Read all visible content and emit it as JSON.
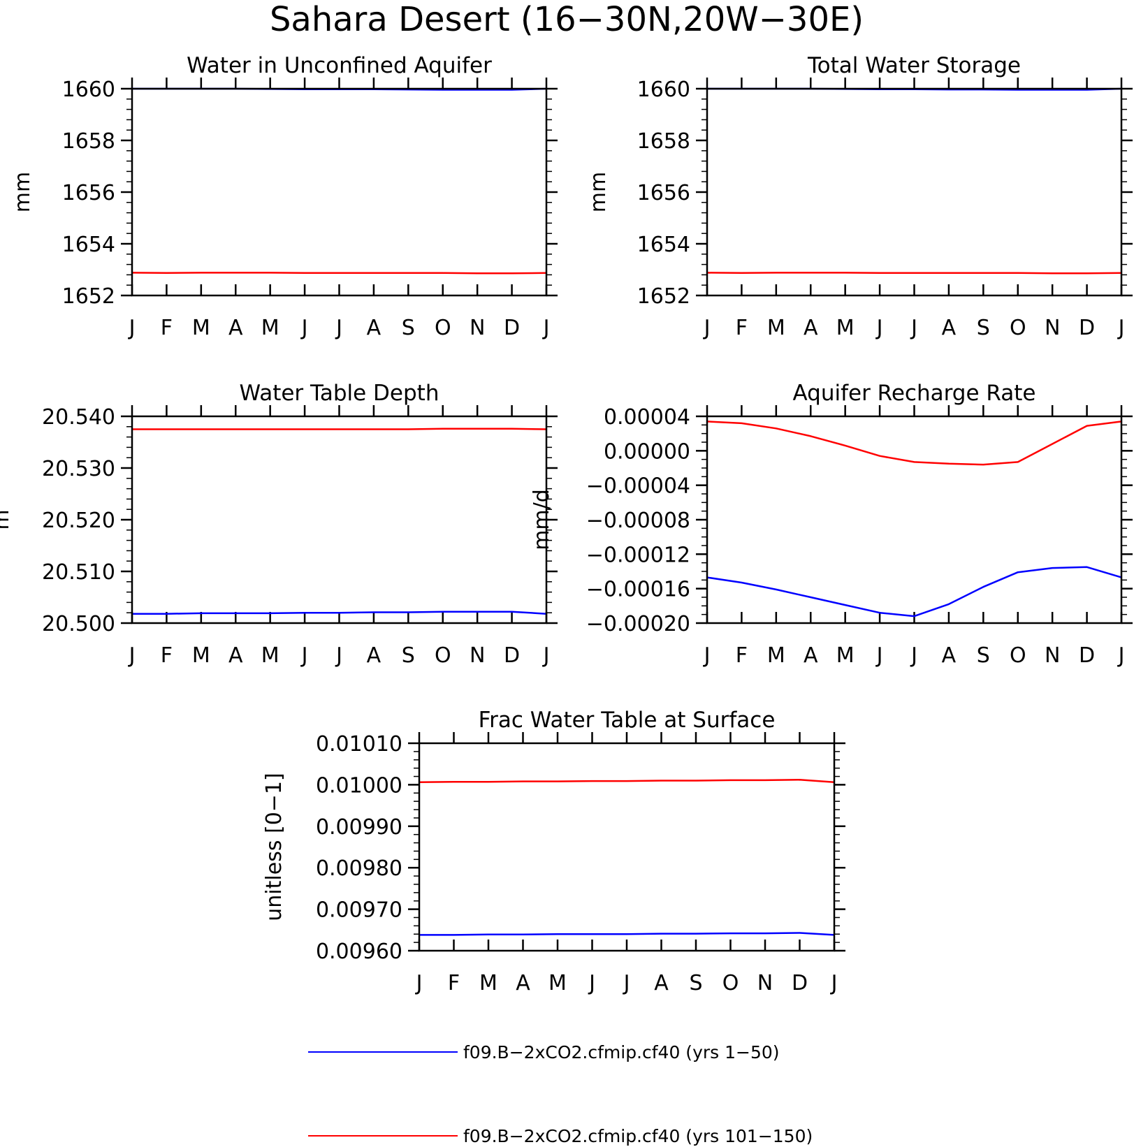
{
  "figure": {
    "title": "Sahara Desert (16−30N,20W−30E)"
  },
  "months": [
    "J",
    "F",
    "M",
    "A",
    "M",
    "J",
    "J",
    "A",
    "S",
    "O",
    "N",
    "D",
    "J"
  ],
  "colors": {
    "series_1": "#0000ff",
    "series_2": "#ff0000",
    "axis": "#000000"
  },
  "legend": {
    "placement": "bottom-center",
    "items": [
      {
        "label": "f09.B−2xCO2.cfmip.cf40 (yrs 1−50)",
        "color": "#0000ff"
      },
      {
        "label": "f09.B−2xCO2.cfmip.cf40 (yrs 101−150)",
        "color": "#ff0000"
      }
    ]
  },
  "chart_data": [
    {
      "type": "line",
      "title": "Water in Unconfined Aquifer",
      "ylabel": "mm",
      "ylim": [
        1652,
        1660
      ],
      "yticks": [
        1652,
        1654,
        1656,
        1658,
        1660
      ],
      "ytick_labels": [
        "1652",
        "1654",
        "1656",
        "1658",
        "1660"
      ],
      "yminor": 0.4,
      "series": [
        {
          "name": "f09.B−2xCO2.cfmip.cf40 (yrs 1−50)",
          "color": "#0000ff",
          "values": [
            1660.0,
            1660.0,
            1660.0,
            1660.0,
            1659.99,
            1659.98,
            1659.98,
            1659.98,
            1659.97,
            1659.96,
            1659.96,
            1659.96,
            1660.0
          ]
        },
        {
          "name": "f09.B−2xCO2.cfmip.cf40 (yrs 101−150)",
          "color": "#ff0000",
          "values": [
            1652.88,
            1652.87,
            1652.88,
            1652.88,
            1652.88,
            1652.87,
            1652.87,
            1652.87,
            1652.87,
            1652.87,
            1652.86,
            1652.86,
            1652.87
          ]
        }
      ]
    },
    {
      "type": "line",
      "title": "Total Water Storage",
      "ylabel": "mm",
      "ylim": [
        1652,
        1660
      ],
      "yticks": [
        1652,
        1654,
        1656,
        1658,
        1660
      ],
      "ytick_labels": [
        "1652",
        "1654",
        "1656",
        "1658",
        "1660"
      ],
      "yminor": 0.4,
      "series": [
        {
          "name": "f09.B−2xCO2.cfmip.cf40 (yrs 1−50)",
          "color": "#0000ff",
          "values": [
            1660.0,
            1660.0,
            1660.0,
            1660.0,
            1659.99,
            1659.98,
            1659.98,
            1659.97,
            1659.97,
            1659.96,
            1659.96,
            1659.96,
            1660.0
          ]
        },
        {
          "name": "f09.B−2xCO2.cfmip.cf40 (yrs 101−150)",
          "color": "#ff0000",
          "values": [
            1652.88,
            1652.87,
            1652.88,
            1652.88,
            1652.88,
            1652.87,
            1652.87,
            1652.87,
            1652.87,
            1652.87,
            1652.86,
            1652.86,
            1652.87
          ]
        }
      ]
    },
    {
      "type": "line",
      "title": "Water Table Depth",
      "ylabel": "m",
      "ylim": [
        20.5,
        20.54
      ],
      "yticks": [
        20.5,
        20.51,
        20.52,
        20.53,
        20.54
      ],
      "ytick_labels": [
        "20.500",
        "20.510",
        "20.520",
        "20.530",
        "20.540"
      ],
      "yminor": 0.002,
      "series": [
        {
          "name": "f09.B−2xCO2.cfmip.cf40 (yrs 1−50)",
          "color": "#0000ff",
          "values": [
            20.5018,
            20.5018,
            20.5019,
            20.5019,
            20.5019,
            20.502,
            20.502,
            20.5021,
            20.5021,
            20.5022,
            20.5022,
            20.5022,
            20.5018
          ]
        },
        {
          "name": "f09.B−2xCO2.cfmip.cf40 (yrs 101−150)",
          "color": "#ff0000",
          "values": [
            20.5375,
            20.5375,
            20.5375,
            20.5375,
            20.5375,
            20.5375,
            20.5375,
            20.5375,
            20.5375,
            20.5376,
            20.5376,
            20.5376,
            20.5375
          ]
        }
      ]
    },
    {
      "type": "line",
      "title": "Aquifer Recharge Rate",
      "ylabel": "mm/d",
      "ylim": [
        -0.0002,
        4e-05
      ],
      "yticks": [
        -0.0002,
        -0.00016,
        -0.00012,
        -8e-05,
        -4e-05,
        0.0,
        4e-05
      ],
      "ytick_labels": [
        "−0.00020",
        "−0.00016",
        "−0.00012",
        "−0.00008",
        "−0.00004",
        "0.00000",
        "0.00004"
      ],
      "yminor": 1e-05,
      "series": [
        {
          "name": "f09.B−2xCO2.cfmip.cf40 (yrs 1−50)",
          "color": "#0000ff",
          "values": [
            -0.000147,
            -0.000153,
            -0.000161,
            -0.00017,
            -0.000179,
            -0.000188,
            -0.000192,
            -0.000178,
            -0.000158,
            -0.000141,
            -0.000136,
            -0.000135,
            -0.000147
          ]
        },
        {
          "name": "f09.B−2xCO2.cfmip.cf40 (yrs 101−150)",
          "color": "#ff0000",
          "values": [
            3.4e-05,
            3.2e-05,
            2.6e-05,
            1.7e-05,
            6e-06,
            -6e-06,
            -1.3e-05,
            -1.5e-05,
            -1.6e-05,
            -1.3e-05,
            8e-06,
            2.9e-05,
            3.4e-05
          ]
        }
      ]
    },
    {
      "type": "line",
      "title": "Frac Water Table at Surface",
      "ylabel": "unitless [0−1]",
      "ylim": [
        0.0096,
        0.0101
      ],
      "yticks": [
        0.0096,
        0.0097,
        0.0098,
        0.0099,
        0.01,
        0.0101
      ],
      "ytick_labels": [
        "0.00960",
        "0.00970",
        "0.00980",
        "0.00990",
        "0.01000",
        "0.01010"
      ],
      "yminor": 2e-05,
      "series": [
        {
          "name": "f09.B−2xCO2.cfmip.cf40 (yrs 1−50)",
          "color": "#0000ff",
          "values": [
            0.009638,
            0.009638,
            0.009639,
            0.009639,
            0.00964,
            0.00964,
            0.00964,
            0.009641,
            0.009641,
            0.009642,
            0.009642,
            0.009643,
            0.009638
          ]
        },
        {
          "name": "f09.B−2xCO2.cfmip.cf40 (yrs 101−150)",
          "color": "#ff0000",
          "values": [
            0.010006,
            0.010007,
            0.010007,
            0.010008,
            0.010008,
            0.010009,
            0.010009,
            0.01001,
            0.01001,
            0.010011,
            0.010011,
            0.010012,
            0.010006
          ]
        }
      ]
    }
  ]
}
